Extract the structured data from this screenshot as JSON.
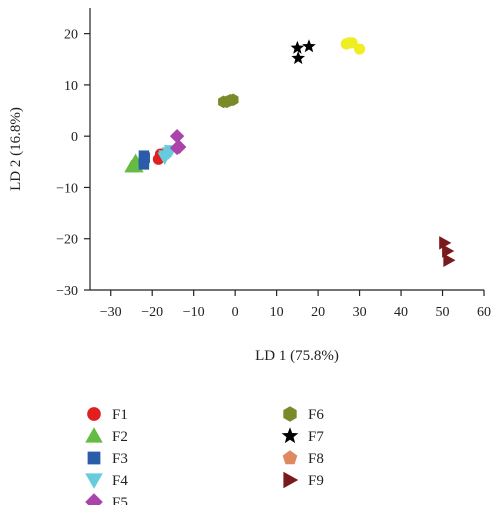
{
  "chart_data": {
    "type": "scatter",
    "xlabel": "LD 1 (75.8%)",
    "ylabel": "LD 2 (16.8%)",
    "xlim": [
      -35,
      60
    ],
    "ylim": [
      -30,
      25
    ],
    "xticks": [
      -30,
      -20,
      -10,
      0,
      10,
      20,
      30,
      40,
      50,
      60
    ],
    "yticks": [
      -30,
      -20,
      -10,
      0,
      10,
      20
    ],
    "grid": false,
    "legend_position": "bottom",
    "series": [
      {
        "name": "F1",
        "marker": "circle",
        "color": "#e02020",
        "points": [
          [
            -18,
            -3.5
          ],
          [
            -18.5,
            -4.5
          ],
          [
            -17.5,
            -4
          ]
        ]
      },
      {
        "name": "F2",
        "marker": "triangle-up",
        "color": "#66bb44",
        "points": [
          [
            -25,
            -6
          ],
          [
            -24,
            -4.8
          ],
          [
            -24.5,
            -5.5
          ],
          [
            -23.8,
            -6
          ]
        ]
      },
      {
        "name": "F3",
        "marker": "square",
        "color": "#2a5caa",
        "points": [
          [
            -22,
            -3.8
          ],
          [
            -22,
            -4.8
          ],
          [
            -22,
            -5.5
          ],
          [
            -21.8,
            -4.2
          ]
        ]
      },
      {
        "name": "F4",
        "marker": "triangle-down",
        "color": "#66ccdd",
        "points": [
          [
            -16.8,
            -3.8
          ],
          [
            -16,
            -3.2
          ],
          [
            -15.5,
            -2.8
          ],
          [
            -17,
            -4.2
          ]
        ]
      },
      {
        "name": "F5",
        "marker": "diamond",
        "color": "#aa44aa",
        "points": [
          [
            -14,
            0
          ],
          [
            -14,
            -2.3
          ],
          [
            -13.5,
            -2.1
          ]
        ]
      },
      {
        "name": "F6",
        "marker": "hexagon",
        "color": "#7a8a28",
        "points": [
          [
            -2.8,
            6.7
          ],
          [
            -2,
            6.7
          ],
          [
            -1.2,
            7
          ],
          [
            -0.5,
            7.1
          ]
        ]
      },
      {
        "name": "F7",
        "marker": "star",
        "color": "#000000",
        "points": [
          [
            15,
            17.2
          ],
          [
            15.2,
            15.2
          ],
          [
            17.8,
            17.5
          ]
        ]
      },
      {
        "name": "F8",
        "marker": "pentagon",
        "color": "#e08860",
        "points": []
      },
      {
        "name": "F9",
        "marker": "triangle-right",
        "color": "#7a1a1a",
        "points": [
          [
            50.5,
            -20.8
          ],
          [
            51.2,
            -22.4
          ],
          [
            51.5,
            -24.2
          ]
        ]
      },
      {
        "name": "",
        "marker": "circle",
        "color": "#eeee22",
        "points": [
          [
            26.8,
            18
          ],
          [
            27.5,
            18.2
          ],
          [
            28.2,
            18.2
          ],
          [
            30,
            17
          ]
        ]
      }
    ]
  }
}
